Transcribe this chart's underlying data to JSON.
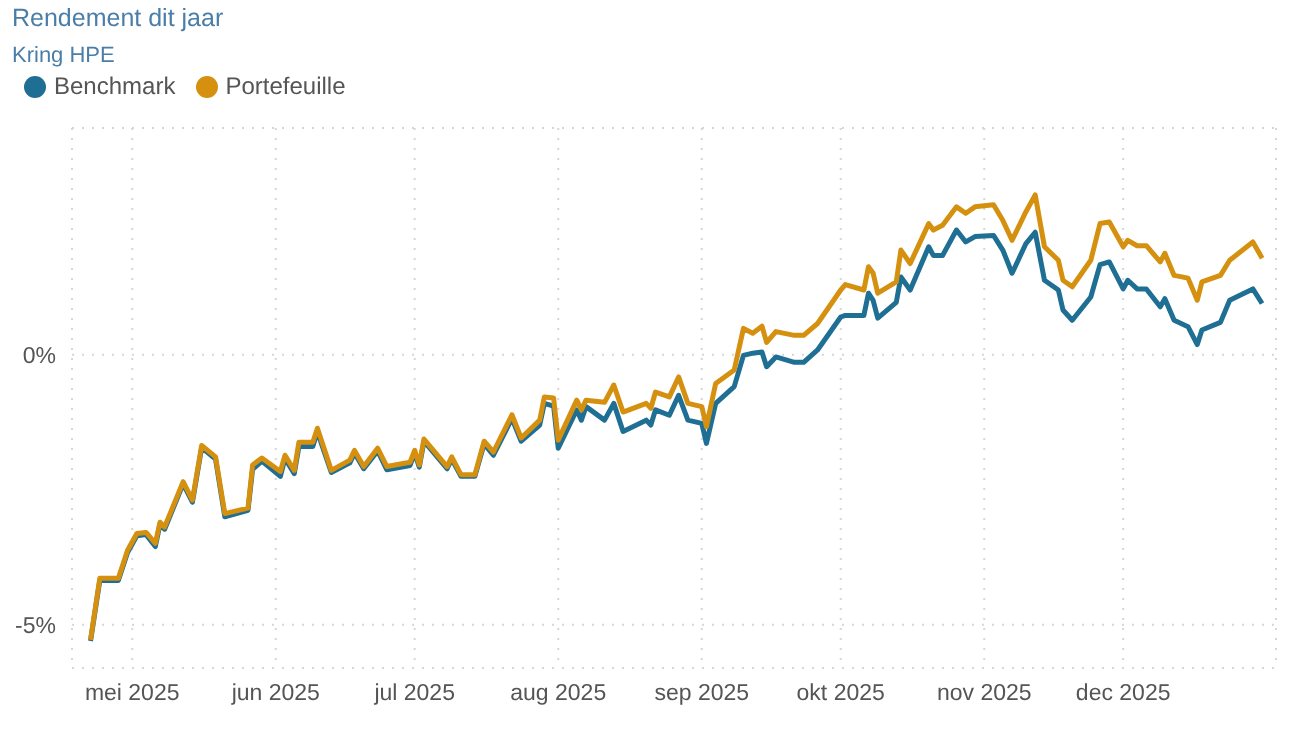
{
  "chart_data": {
    "type": "line",
    "title": "Rendement dit jaar",
    "subtitle": "Kring HPE",
    "x": [
      "2025-04-22",
      "2025-04-24",
      "2025-04-28",
      "2025-04-30",
      "2025-05-02",
      "2025-05-04",
      "2025-05-06",
      "2025-05-07",
      "2025-05-08",
      "2025-05-12",
      "2025-05-14",
      "2025-05-16",
      "2025-05-19",
      "2025-05-21",
      "2025-05-26",
      "2025-05-27",
      "2025-05-29",
      "2025-06-02",
      "2025-06-03",
      "2025-06-05",
      "2025-06-06",
      "2025-06-09",
      "2025-06-10",
      "2025-06-11",
      "2025-06-13",
      "2025-06-17",
      "2025-06-18",
      "2025-06-20",
      "2025-06-23",
      "2025-06-25",
      "2025-06-30",
      "2025-07-01",
      "2025-07-02",
      "2025-07-03",
      "2025-07-08",
      "2025-07-09",
      "2025-07-11",
      "2025-07-14",
      "2025-07-16",
      "2025-07-18",
      "2025-07-22",
      "2025-07-24",
      "2025-07-28",
      "2025-07-29",
      "2025-07-31",
      "2025-08-01",
      "2025-08-05",
      "2025-08-06",
      "2025-08-07",
      "2025-08-11",
      "2025-08-13",
      "2025-08-15",
      "2025-08-20",
      "2025-08-21",
      "2025-08-22",
      "2025-08-25",
      "2025-08-27",
      "2025-08-29",
      "2025-09-01",
      "2025-09-02",
      "2025-09-04",
      "2025-09-08",
      "2025-09-10",
      "2025-09-12",
      "2025-09-14",
      "2025-09-15",
      "2025-09-17",
      "2025-09-21",
      "2025-09-23",
      "2025-09-26",
      "2025-10-01",
      "2025-10-02",
      "2025-10-06",
      "2025-10-07",
      "2025-10-08",
      "2025-10-09",
      "2025-10-13",
      "2025-10-14",
      "2025-10-16",
      "2025-10-20",
      "2025-10-21",
      "2025-10-23",
      "2025-10-26",
      "2025-10-28",
      "2025-10-30",
      "2025-11-03",
      "2025-11-05",
      "2025-11-07",
      "2025-11-10",
      "2025-11-12",
      "2025-11-14",
      "2025-11-17",
      "2025-11-18",
      "2025-11-20",
      "2025-11-24",
      "2025-11-26",
      "2025-11-28",
      "2025-12-01",
      "2025-12-02",
      "2025-12-04",
      "2025-12-06",
      "2025-12-09",
      "2025-12-10",
      "2025-12-12",
      "2025-12-15",
      "2025-12-17",
      "2025-12-18",
      "2025-12-22",
      "2025-12-24",
      "2025-12-29",
      "2025-12-31"
    ],
    "series": [
      {
        "name": "Benchmark",
        "color": "#1f6e94",
        "values": [
          -5.3,
          -4.18,
          -4.18,
          -3.66,
          -3.35,
          -3.33,
          -3.55,
          -3.14,
          -3.23,
          -2.39,
          -2.73,
          -1.72,
          -1.93,
          -3.0,
          -2.88,
          -2.12,
          -1.97,
          -2.25,
          -1.92,
          -2.2,
          -1.7,
          -1.7,
          -1.42,
          -1.68,
          -2.18,
          -2.0,
          -1.82,
          -2.11,
          -1.78,
          -2.13,
          -2.05,
          -1.82,
          -2.08,
          -1.6,
          -2.11,
          -1.93,
          -2.25,
          -2.25,
          -1.65,
          -1.86,
          -1.18,
          -1.6,
          -1.3,
          -0.9,
          -0.95,
          -1.73,
          -1.02,
          -1.21,
          -0.96,
          -1.21,
          -0.9,
          -1.42,
          -1.21,
          -1.3,
          -1.02,
          -1.12,
          -0.75,
          -1.21,
          -1.27,
          -1.64,
          -0.9,
          -0.59,
          -0.01,
          0.03,
          0.05,
          -0.22,
          -0.04,
          -0.14,
          -0.14,
          0.09,
          0.7,
          0.73,
          0.73,
          1.14,
          1.01,
          0.68,
          0.97,
          1.44,
          1.2,
          2.0,
          1.84,
          1.84,
          2.31,
          2.09,
          2.19,
          2.21,
          1.94,
          1.51,
          2.06,
          2.27,
          1.38,
          1.2,
          0.83,
          0.64,
          1.07,
          1.67,
          1.72,
          1.22,
          1.38,
          1.22,
          1.22,
          0.89,
          1.04,
          0.64,
          0.52,
          0.19,
          0.46,
          0.6,
          1.01,
          1.22,
          0.95
        ]
      },
      {
        "name": "Portefeuille",
        "color": "#d4900e",
        "values": [
          -5.28,
          -4.14,
          -4.14,
          -3.62,
          -3.31,
          -3.29,
          -3.49,
          -3.1,
          -3.19,
          -2.35,
          -2.69,
          -1.68,
          -1.89,
          -2.94,
          -2.84,
          -2.04,
          -1.91,
          -2.16,
          -1.86,
          -2.14,
          -1.62,
          -1.62,
          -1.36,
          -1.62,
          -2.14,
          -1.95,
          -1.77,
          -2.07,
          -1.73,
          -2.07,
          -1.99,
          -1.77,
          -2.04,
          -1.56,
          -2.07,
          -1.89,
          -2.22,
          -2.22,
          -1.6,
          -1.8,
          -1.11,
          -1.54,
          -1.21,
          -0.78,
          -0.8,
          -1.58,
          -0.84,
          -1.02,
          -0.84,
          -0.88,
          -0.56,
          -1.06,
          -0.9,
          -0.99,
          -0.69,
          -0.78,
          -0.41,
          -0.9,
          -0.96,
          -1.33,
          -0.53,
          -0.28,
          0.49,
          0.4,
          0.53,
          0.23,
          0.43,
          0.36,
          0.36,
          0.58,
          1.2,
          1.3,
          1.2,
          1.63,
          1.51,
          1.14,
          1.35,
          1.94,
          1.69,
          2.43,
          2.31,
          2.4,
          2.74,
          2.62,
          2.74,
          2.78,
          2.49,
          2.12,
          2.65,
          2.96,
          2.0,
          1.75,
          1.38,
          1.26,
          1.75,
          2.43,
          2.46,
          2.0,
          2.12,
          2.02,
          2.02,
          1.72,
          1.88,
          1.47,
          1.42,
          1.01,
          1.35,
          1.47,
          1.75,
          2.09,
          1.79
        ]
      }
    ],
    "xlim": [
      "2025-04-18",
      "2026-01-03"
    ],
    "xticks": [
      {
        "value": "2025-05-01",
        "label": "mei 2025"
      },
      {
        "value": "2025-06-01",
        "label": "jun 2025"
      },
      {
        "value": "2025-07-01",
        "label": "jul 2025"
      },
      {
        "value": "2025-08-01",
        "label": "aug 2025"
      },
      {
        "value": "2025-09-01",
        "label": "sep 2025"
      },
      {
        "value": "2025-10-01",
        "label": "okt 2025"
      },
      {
        "value": "2025-11-01",
        "label": "nov 2025"
      },
      {
        "value": "2025-12-01",
        "label": "dec 2025"
      }
    ],
    "ylim": [
      -5.8,
      4.2
    ],
    "yticks": [
      {
        "value": -5,
        "label": "-5%"
      },
      {
        "value": 0,
        "label": "0%"
      }
    ],
    "grid": true,
    "legend": "top left",
    "marker": "none",
    "line_style": "solid"
  }
}
